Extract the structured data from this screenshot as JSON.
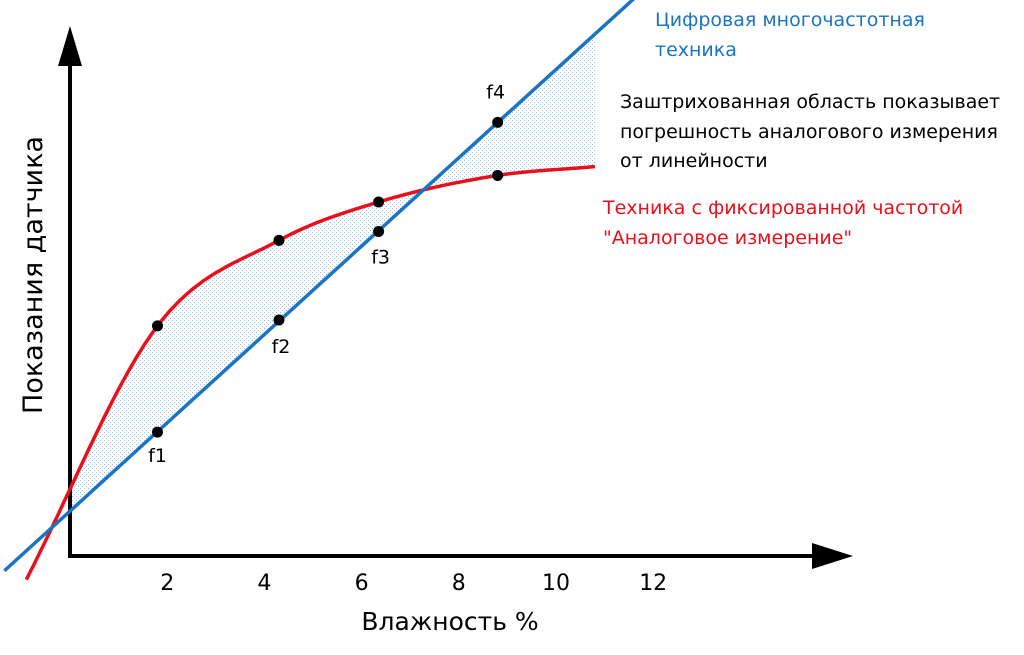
{
  "chart_data": {
    "type": "line",
    "xlabel": "Влажность %",
    "ylabel": "Показания датчика",
    "x_ticks": [
      "2",
      "4",
      "6",
      "8",
      "10",
      "12"
    ],
    "series": [
      {
        "name": "Цифровая многочастотная техника",
        "color": "#1a74c4",
        "style": "linear",
        "points": [
          {
            "label": "f1",
            "x": 1.8,
            "y": 0.42
          },
          {
            "label": "f2",
            "x": 4.3,
            "y": 0.8
          },
          {
            "label": "f3",
            "x": 6.35,
            "y": 1.1
          },
          {
            "label": "f4",
            "x": 8.8,
            "y": 1.47
          }
        ]
      },
      {
        "name": "Техника с фиксированной частотой \"Аналоговое измерение\"",
        "color": "#e8101a",
        "style": "curve",
        "points": [
          {
            "x": 1.8,
            "y": 0.78
          },
          {
            "x": 4.3,
            "y": 1.07
          },
          {
            "x": 6.35,
            "y": 1.2
          },
          {
            "x": 8.8,
            "y": 1.29
          }
        ]
      }
    ],
    "shaded_region": "between series",
    "annotations": {
      "digital_label_line1": "Цифровая многочастотная",
      "digital_label_line2": "техника",
      "shade_note_line1": "Заштрихованная область показывает",
      "shade_note_line2": "погрешность аналогового измерения",
      "shade_note_line3": "от линейности",
      "analog_label_line1": "Техника с фиксированной частотой",
      "analog_label_line2": "\"Аналоговое измерение\""
    }
  }
}
